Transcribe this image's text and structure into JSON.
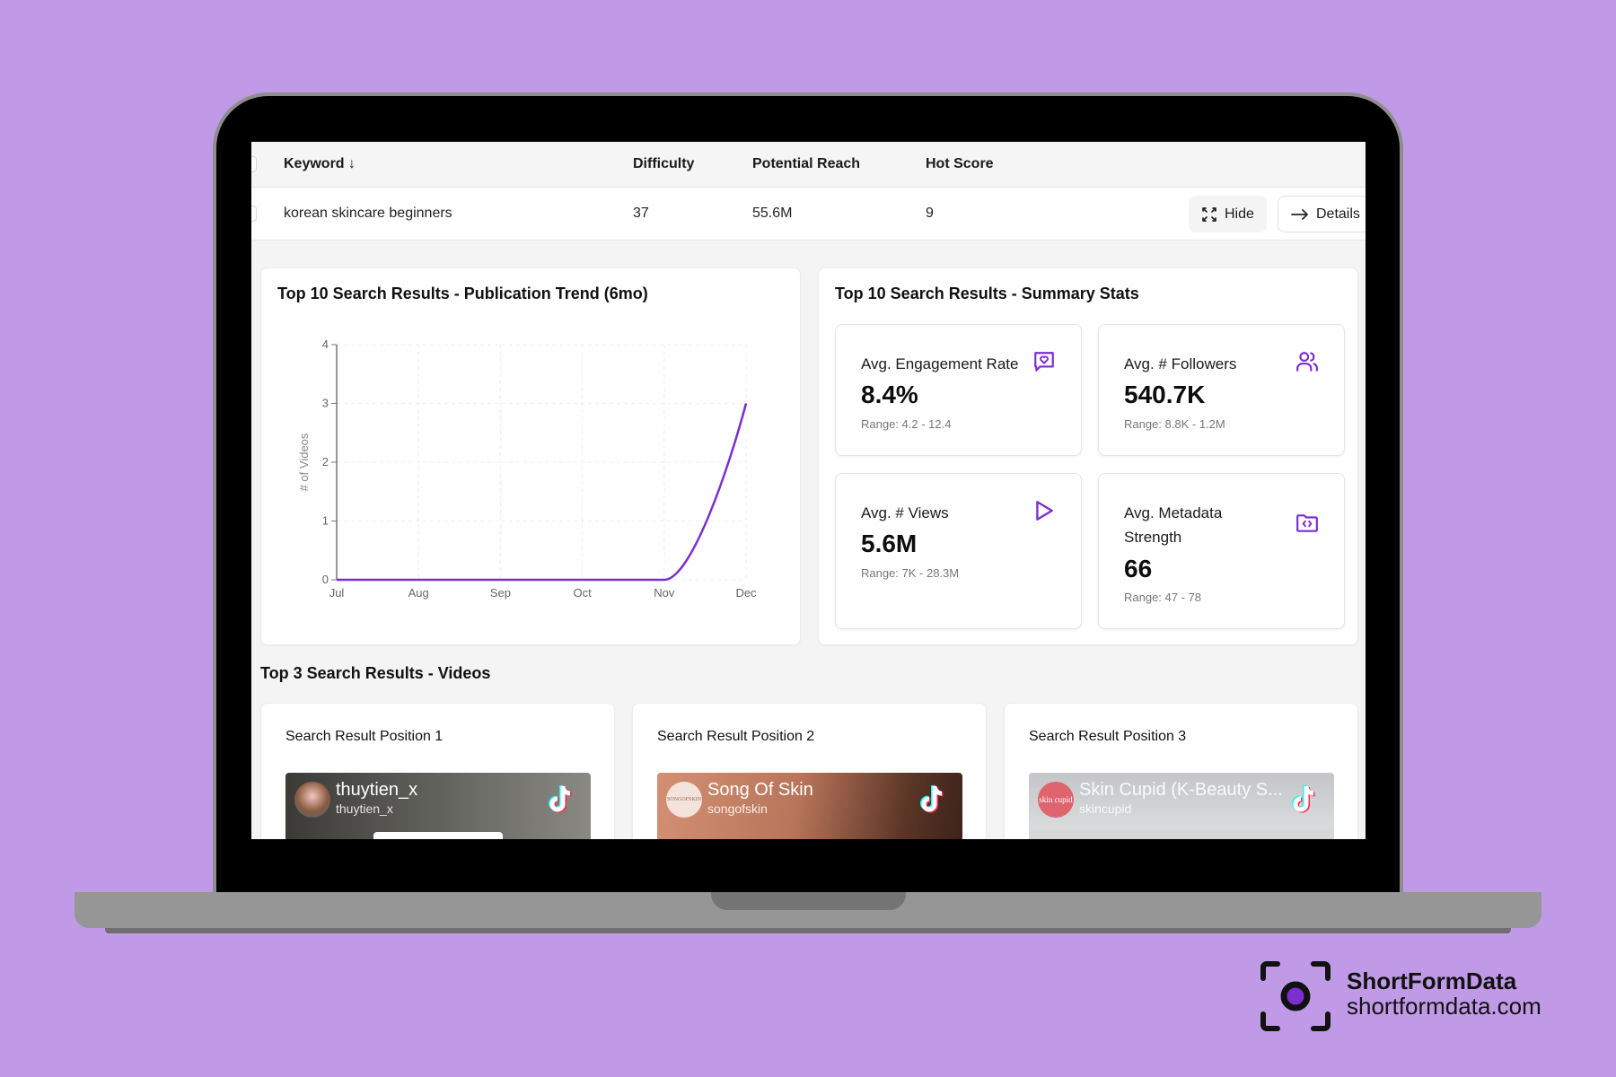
{
  "table": {
    "headers": {
      "keyword": "Keyword ↓",
      "difficulty": "Difficulty",
      "potential_reach": "Potential Reach",
      "hot_score": "Hot Score"
    },
    "row": {
      "keyword": "korean skincare beginners",
      "difficulty": "37",
      "potential_reach": "55.6M",
      "hot_score": "9"
    },
    "actions": {
      "hide_label": "Hide",
      "details_label": "Details"
    }
  },
  "trend_card": {
    "title": "Top 10 Search Results - Publication Trend (6mo)"
  },
  "chart_data": {
    "type": "line",
    "title": "Top 10 Search Results - Publication Trend (6mo)",
    "categories": [
      "Jul",
      "Aug",
      "Sep",
      "Oct",
      "Nov",
      "Dec"
    ],
    "series": [
      {
        "name": "# of Videos",
        "values": [
          0,
          0,
          0,
          0,
          0,
          3
        ],
        "color": "#7b2fd0"
      }
    ],
    "xlabel": "",
    "ylabel": "# of Videos",
    "ylim": [
      0,
      4
    ],
    "yticks": [
      "0",
      "1",
      "2",
      "3",
      "4"
    ],
    "grid": true,
    "legend": "none"
  },
  "stats_card": {
    "title": "Top 10 Search Results - Summary Stats",
    "items": [
      {
        "label": "Avg. Engagement Rate",
        "value": "8.4%",
        "range": "Range: 4.2 - 12.4",
        "icon": "message-heart-icon"
      },
      {
        "label": "Avg. # Followers",
        "value": "540.7K",
        "range": "Range: 8.8K - 1.2M",
        "icon": "users-icon"
      },
      {
        "label": "Avg. # Views",
        "value": "5.6M",
        "range": "Range: 7K - 28.3M",
        "icon": "play-icon"
      },
      {
        "label_line1": "Avg. Metadata",
        "label_line2": "Strength",
        "value": "66",
        "range": "Range: 47 - 78",
        "icon": "folder-code-icon"
      }
    ]
  },
  "videos_section": {
    "title": "Top 3 Search Results - Videos",
    "cards": [
      {
        "position": "Search Result Position 1",
        "name": "thuytien_x",
        "handle": "thuytien_x"
      },
      {
        "position": "Search Result Position 2",
        "name": "Song Of Skin",
        "handle": "songofskin",
        "avatar_text": "SONGOFSKIN"
      },
      {
        "position": "Search Result Position 3",
        "name": "Skin Cupid (K-Beauty S...",
        "handle": "skincupid",
        "avatar_text": "skin cupid"
      }
    ]
  },
  "brand": {
    "name": "ShortFormData",
    "url": "shortformdata.com"
  },
  "colors": {
    "background": "#c09ae6",
    "accent": "#7b2fd0"
  }
}
